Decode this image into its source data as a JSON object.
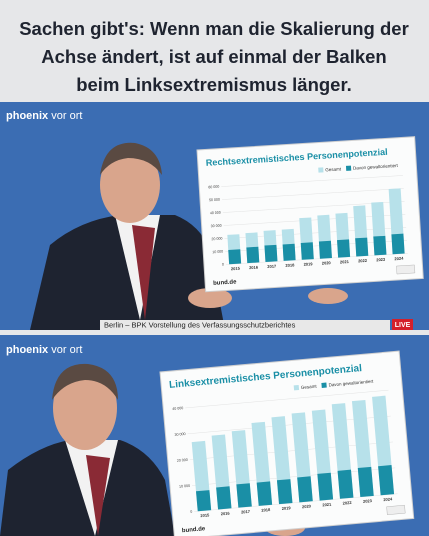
{
  "caption": [
    "Sachen gibt's: Wenn man die Skalierung der",
    "Achse ändert, ist auf einmal der Balken",
    "beim Linksextremismus länger."
  ],
  "frames": [
    {
      "logo": {
        "brand": "phoenix",
        "program": "vor ort"
      },
      "source": "bund.de",
      "lower_third": "Berlin – BPK Vorstellung des Verfassungsschutzberichtes",
      "live": "LIVE"
    },
    {
      "logo": {
        "brand": "phoenix",
        "program": "vor ort"
      },
      "source": "bund.de"
    }
  ],
  "chart_data": [
    {
      "type": "bar",
      "title": "Rechtsextremistisches Personenpotenzial",
      "categories": [
        "2015",
        "2016",
        "2017",
        "2018",
        "2019",
        "2020",
        "2021",
        "2022",
        "2023",
        "2024"
      ],
      "series": [
        {
          "name": "Gesamt",
          "color": "#b7e1ea",
          "values": [
            22600,
            23100,
            24000,
            24100,
            32080,
            33300,
            33900,
            38800,
            40600,
            50250
          ]
        },
        {
          "name": "Davon gewaltorientiert",
          "color": "#1a8fa6",
          "values": [
            11000,
            12100,
            12700,
            12700,
            13000,
            13300,
            13500,
            14000,
            14500,
            15300
          ]
        }
      ],
      "ylim": [
        0,
        60000
      ],
      "yticks": [
        0,
        {
          "value": 10000,
          "label": "10 000"
        },
        {
          "value": 20000,
          "label": "20 000"
        },
        {
          "value": 30000,
          "label": "30 000"
        },
        {
          "value": 40000,
          "label": "40 000"
        },
        {
          "value": 50000,
          "label": "50 000"
        },
        {
          "value": 60000,
          "label": "60 000"
        }
      ],
      "grid": true
    },
    {
      "type": "bar",
      "title": "Linksextremistisches Personenpotenzial",
      "categories": [
        "2015",
        "2016",
        "2017",
        "2018",
        "2019",
        "2020",
        "2021",
        "2022",
        "2023",
        "2024"
      ],
      "series": [
        {
          "name": "Gesamt",
          "color": "#b7e1ea",
          "values": [
            26700,
            28500,
            29500,
            32000,
            33500,
            34300,
            34700,
            36500,
            37000,
            38000
          ]
        },
        {
          "name": "Davon gewaltorientiert",
          "color": "#1a8fa6",
          "values": [
            7700,
            8500,
            9000,
            9000,
            9200,
            9600,
            10300,
            10800,
            11200,
            11200
          ]
        }
      ],
      "ylim": [
        0,
        40000
      ],
      "yticks": [
        0,
        {
          "value": 10000,
          "label": "10 000"
        },
        {
          "value": 20000,
          "label": "20 000"
        },
        {
          "value": 30000,
          "label": "30 000"
        },
        {
          "value": 40000,
          "label": "40 000"
        }
      ],
      "grid": true
    }
  ]
}
